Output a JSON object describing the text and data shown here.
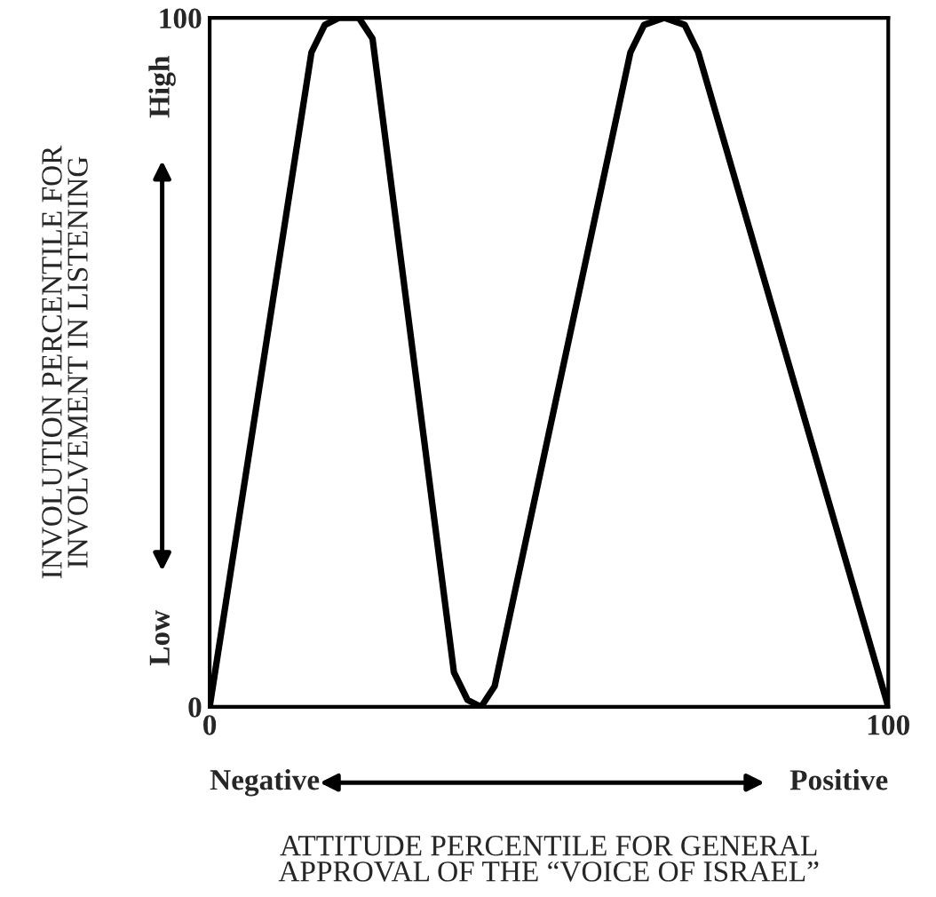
{
  "chart_data": {
    "type": "line",
    "xlabel": "ATTITUDE PERCENTILE FOR GENERAL\nAPPROVAL OF THE “VOICE OF ISRAEL”",
    "ylabel": "INVOLUTION PERCENTILE FOR\nINVOLVEMENT IN LISTENING",
    "x": [
      0,
      15,
      17,
      19,
      22,
      24,
      36,
      38,
      40,
      42,
      62,
      64,
      67,
      70,
      72,
      100
    ],
    "values": [
      0,
      95,
      99,
      100,
      100,
      97,
      5,
      1,
      0,
      3,
      95,
      99,
      100,
      99,
      95,
      0
    ],
    "color": "#000000",
    "xlim": [
      0,
      100
    ],
    "ylim": [
      0,
      100
    ],
    "xticks": [
      0,
      100
    ],
    "yticks": [
      0,
      100
    ],
    "marker": "none",
    "line_style": "solid",
    "annotations": [
      "Negative",
      "Positive",
      "Low",
      "High"
    ]
  }
}
